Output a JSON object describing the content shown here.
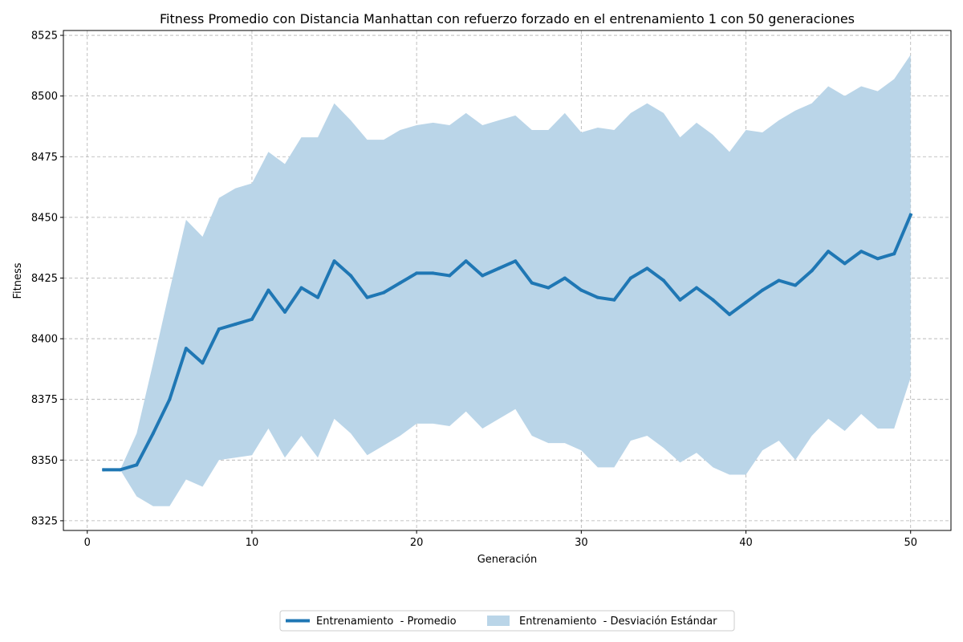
{
  "chart_data": {
    "type": "line",
    "title": "Fitness Promedio con Distancia Manhattan con refuerzo forzado en el entrenamiento 1 con 50 generaciones",
    "xlabel": "Generación",
    "ylabel": "Fitness",
    "xlim": [
      -1.45,
      52.45
    ],
    "ylim": [
      8321,
      8527
    ],
    "xticks": [
      0,
      10,
      20,
      30,
      40,
      50
    ],
    "yticks": [
      8325,
      8350,
      8375,
      8400,
      8425,
      8450,
      8475,
      8500,
      8525
    ],
    "grid": true,
    "legend_position": "bottom-center",
    "x": [
      1,
      2,
      3,
      4,
      5,
      6,
      7,
      8,
      9,
      10,
      11,
      12,
      13,
      14,
      15,
      16,
      17,
      18,
      19,
      20,
      21,
      22,
      23,
      24,
      25,
      26,
      27,
      28,
      29,
      30,
      31,
      32,
      33,
      34,
      35,
      36,
      37,
      38,
      39,
      40,
      41,
      42,
      43,
      44,
      45,
      46,
      47,
      48,
      49,
      50
    ],
    "series": [
      {
        "name": "Entrenamiento  - Promedio",
        "kind": "line",
        "color": "#1f77b4",
        "values": [
          8346,
          8346,
          8348,
          8361,
          8375,
          8396,
          8390,
          8404,
          8406,
          8408,
          8420,
          8411,
          8421,
          8417,
          8432,
          8426,
          8417,
          8419,
          8423,
          8427,
          8427,
          8426,
          8432,
          8426,
          8429,
          8432,
          8423,
          8421,
          8425,
          8420,
          8417,
          8416,
          8425,
          8429,
          8424,
          8416,
          8421,
          8416,
          8410,
          8415,
          8420,
          8424,
          8422,
          8428,
          8436,
          8431,
          8436,
          8433,
          8435,
          8451
        ]
      },
      {
        "name": "Entrenamiento  - Desviación Estándar",
        "kind": "band",
        "color": "#bad5e8",
        "upper": [
          8346,
          8346,
          8361,
          8390,
          8420,
          8449,
          8442,
          8458,
          8462,
          8464,
          8477,
          8472,
          8483,
          8483,
          8497,
          8490,
          8482,
          8482,
          8486,
          8488,
          8489,
          8488,
          8493,
          8488,
          8490,
          8492,
          8486,
          8486,
          8493,
          8485,
          8487,
          8486,
          8493,
          8497,
          8493,
          8483,
          8489,
          8484,
          8477,
          8486,
          8485,
          8490,
          8494,
          8497,
          8504,
          8500,
          8504,
          8502,
          8507,
          8517
        ],
        "lower": [
          8346,
          8346,
          8335,
          8331,
          8331,
          8342,
          8339,
          8350,
          8351,
          8352,
          8363,
          8351,
          8360,
          8351,
          8367,
          8361,
          8352,
          8356,
          8360,
          8365,
          8365,
          8364,
          8370,
          8363,
          8367,
          8371,
          8360,
          8357,
          8357,
          8354,
          8347,
          8347,
          8358,
          8360,
          8355,
          8349,
          8353,
          8347,
          8344,
          8344,
          8354,
          8358,
          8350,
          8360,
          8367,
          8362,
          8369,
          8363,
          8363,
          8384
        ]
      }
    ]
  }
}
